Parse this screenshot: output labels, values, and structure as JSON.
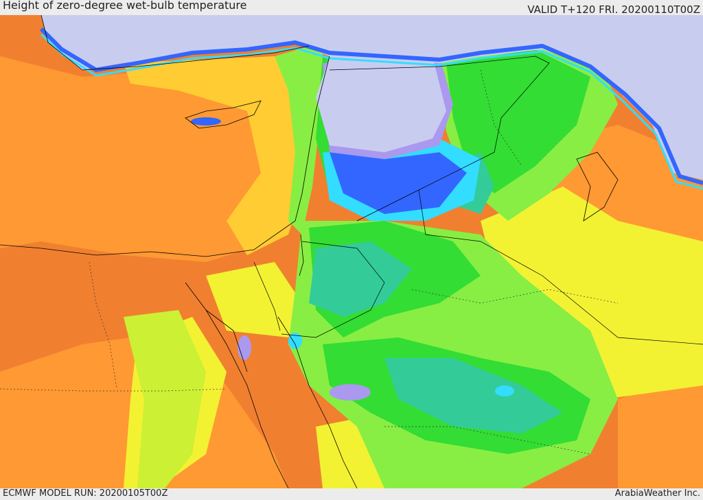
{
  "header": {
    "title": "Height of zero-degree wet-bulb temperature",
    "valid": "VALID T+120 FRI. 20200110T00Z"
  },
  "footer": {
    "model_run": "ECMWF MODEL RUN: 20200105T00Z",
    "credit": "ArabiaWeather Inc."
  },
  "palette": {
    "deep_orange": "#f08030",
    "orange": "#ff9933",
    "amber": "#ffcc33",
    "yellow": "#f2f233",
    "yellow_green": "#ccf033",
    "light_green": "#88ee44",
    "green": "#33dd33",
    "teal": "#33cc99",
    "cyan": "#33ddff",
    "blue": "#3366ff",
    "violet": "#aa99ee",
    "lavender": "#c8cdf0"
  }
}
